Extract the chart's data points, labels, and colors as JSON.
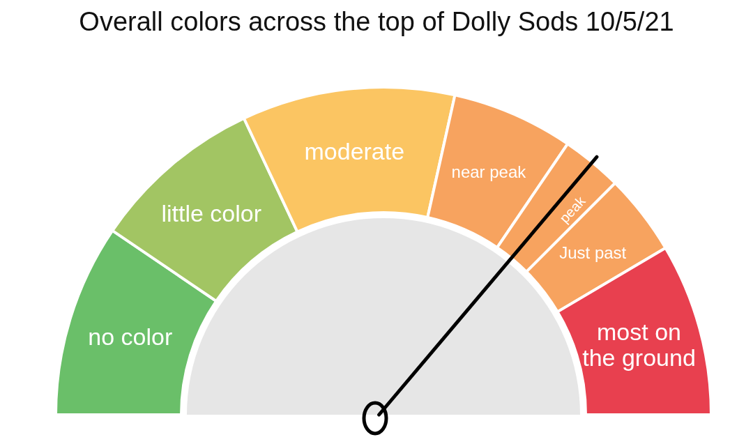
{
  "chart_data": {
    "type": "donut",
    "title": "Overall colors across the top of Dolly Sods 10/5/21",
    "categories": [
      "no color",
      "little color",
      "moderate",
      "near peak",
      "peak",
      "Just past",
      "most on the ground"
    ],
    "values": [
      19,
      17,
      21,
      12,
      6,
      8,
      17
    ],
    "colors": [
      "#6abf69",
      "#a2c563",
      "#fbc562",
      "#f7a35f",
      "#f7a35f",
      "#f7a35f",
      "#e8404f"
    ],
    "needle": "peak"
  }
}
